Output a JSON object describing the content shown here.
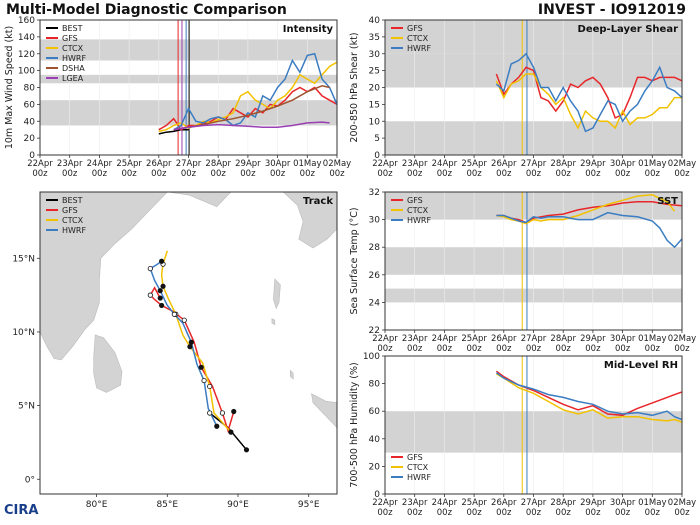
{
  "header": {
    "title": "Multi-Model Diagnostic Comparison",
    "storm": "INVEST - IO912019",
    "logo": "CIRA"
  },
  "colors": {
    "BEST": "#000000",
    "GFS": "#e8262a",
    "CTCX": "#f2c100",
    "HWRF": "#3b7dc2",
    "DSHA": "#a0522d",
    "LGEA": "#9b3fb5",
    "band": "#d3d3d3",
    "land": "#d3d3d3",
    "sea": "#ffffff"
  },
  "time_axis": {
    "labels": [
      "22Apr",
      "23Apr",
      "24Apr",
      "25Apr",
      "26Apr",
      "27Apr",
      "28Apr",
      "29Apr",
      "30Apr",
      "01May",
      "02May"
    ],
    "sublabel": "00z",
    "vlines": [
      {
        "x": 4.65,
        "color": "#e8262a"
      },
      {
        "x": 4.78,
        "color": "#9b3fb5"
      },
      {
        "x": 4.92,
        "color": "#3b7dc2"
      },
      {
        "x": 5.02,
        "color": "#000000"
      }
    ],
    "vlines_right": [
      {
        "x": 4.62,
        "color": "#f2c100"
      },
      {
        "x": 4.78,
        "color": "#3b7dc2"
      }
    ]
  },
  "chart_data": [
    {
      "id": "intensity",
      "type": "line",
      "title": "Intensity",
      "ylabel": "10m Max Wind Speed (kt)",
      "ylim": [
        0,
        160
      ],
      "yticks": [
        0,
        20,
        40,
        60,
        80,
        100,
        120,
        140,
        160
      ],
      "xlim": [
        0,
        10
      ],
      "bands": [
        [
          35,
          65
        ],
        [
          85,
          95
        ],
        [
          112,
          137
        ]
      ],
      "legend": [
        "BEST",
        "GFS",
        "CTCX",
        "HWRF",
        "DSHA",
        "LGEA"
      ],
      "series": [
        {
          "name": "BEST",
          "x": [
            4.0,
            4.25,
            4.5,
            4.75,
            5.0
          ],
          "y": [
            25,
            27,
            28,
            30,
            30
          ]
        },
        {
          "name": "GFS",
          "x": [
            4.0,
            4.25,
            4.5,
            4.75,
            5.0,
            5.25,
            5.5,
            5.75,
            6.0,
            6.25,
            6.5,
            6.75,
            7.0,
            7.25,
            7.5,
            7.75,
            8.0,
            8.25,
            8.5,
            8.75,
            9.0,
            9.25,
            9.5,
            9.75,
            10.0
          ],
          "y": [
            30,
            35,
            43,
            30,
            35,
            35,
            37,
            40,
            45,
            42,
            55,
            50,
            45,
            55,
            50,
            60,
            58,
            65,
            75,
            80,
            75,
            80,
            70,
            65,
            60
          ]
        },
        {
          "name": "CTCX",
          "x": [
            4.0,
            4.25,
            4.5,
            4.75,
            5.0,
            5.25,
            5.5,
            5.75,
            6.0,
            6.25,
            6.5,
            6.75,
            7.0,
            7.25,
            7.5,
            7.75,
            8.0,
            8.25,
            8.5,
            8.75,
            9.0,
            9.25,
            9.5,
            9.75,
            10.0
          ],
          "y": [
            28,
            30,
            35,
            38,
            32,
            35,
            40,
            38,
            42,
            45,
            50,
            70,
            75,
            65,
            60,
            55,
            65,
            70,
            80,
            95,
            90,
            85,
            95,
            105,
            110
          ]
        },
        {
          "name": "HWRF",
          "x": [
            4.5,
            4.75,
            5.0,
            5.25,
            5.5,
            5.75,
            6.0,
            6.25,
            6.5,
            6.75,
            7.0,
            7.25,
            7.5,
            7.75,
            8.0,
            8.25,
            8.5,
            8.75,
            9.0,
            9.25,
            9.5,
            9.75,
            10.0
          ],
          "y": [
            30,
            35,
            55,
            40,
            38,
            43,
            45,
            42,
            35,
            38,
            50,
            45,
            70,
            65,
            80,
            90,
            112,
            98,
            118,
            120,
            90,
            80,
            60
          ]
        },
        {
          "name": "DSHA",
          "x": [
            4.5,
            5.0,
            5.5,
            6.0,
            6.5,
            7.0,
            7.5,
            8.0,
            8.5,
            9.0,
            9.5,
            9.75
          ],
          "y": [
            30,
            33,
            36,
            40,
            43,
            47,
            52,
            58,
            65,
            75,
            82,
            80
          ]
        },
        {
          "name": "LGEA",
          "x": [
            4.5,
            5.0,
            5.5,
            6.0,
            6.5,
            7.0,
            7.5,
            8.0,
            8.5,
            9.0,
            9.5,
            9.75
          ],
          "y": [
            30,
            33,
            35,
            36,
            35,
            34,
            33,
            33,
            35,
            38,
            39,
            38
          ]
        }
      ]
    },
    {
      "id": "shear",
      "type": "line",
      "title": "Deep-Layer Shear",
      "ylabel": "200-850 hPa Shear (kt)",
      "ylim": [
        0,
        40
      ],
      "yticks": [
        0,
        5,
        10,
        15,
        20,
        25,
        30,
        35,
        40
      ],
      "xlim": [
        0,
        10
      ],
      "bands": [
        [
          0,
          10
        ],
        [
          20,
          30
        ],
        [
          30,
          40
        ]
      ],
      "legend": [
        "GFS",
        "CTCX",
        "HWRF"
      ],
      "series": [
        {
          "name": "GFS",
          "x": [
            3.75,
            4.0,
            4.25,
            4.5,
            4.75,
            5.0,
            5.25,
            5.5,
            5.75,
            6.0,
            6.25,
            6.5,
            6.75,
            7.0,
            7.25,
            7.5,
            7.75,
            8.0,
            8.25,
            8.5,
            8.75,
            9.0,
            9.25,
            9.5,
            9.75,
            10.0
          ],
          "y": [
            24,
            18,
            21,
            23,
            26,
            25,
            17,
            16,
            13,
            16,
            21,
            20,
            22,
            23,
            21,
            17,
            11,
            12,
            17,
            23,
            23,
            22,
            23,
            23,
            23,
            22
          ]
        },
        {
          "name": "CTCX",
          "x": [
            3.75,
            4.0,
            4.25,
            4.5,
            4.75,
            5.0,
            5.25,
            5.5,
            5.75,
            6.0,
            6.25,
            6.5,
            6.75,
            7.0,
            7.25,
            7.5,
            7.75,
            8.0,
            8.25,
            8.5,
            8.75,
            9.0,
            9.25,
            9.5,
            9.75,
            10.0
          ],
          "y": [
            22,
            17,
            21,
            22,
            24,
            24,
            20,
            18,
            15,
            17,
            12,
            8,
            13,
            11,
            10,
            10,
            8,
            13,
            9,
            11,
            11,
            12,
            14,
            14,
            17,
            17
          ]
        },
        {
          "name": "HWRF",
          "x": [
            3.75,
            4.0,
            4.25,
            4.5,
            4.75,
            5.0,
            5.25,
            5.5,
            5.75,
            6.0,
            6.25,
            6.5,
            6.75,
            7.0,
            7.25,
            7.5,
            7.75,
            8.0,
            8.25,
            8.5,
            8.75,
            9.0,
            9.25,
            9.5,
            9.75,
            10.0
          ],
          "y": [
            21,
            19,
            27,
            28,
            30,
            26,
            20,
            20,
            16,
            20,
            16,
            13,
            7,
            8,
            12,
            16,
            15,
            10,
            13,
            15,
            19,
            22,
            26,
            20,
            19,
            17
          ]
        }
      ]
    },
    {
      "id": "sst",
      "type": "line",
      "title": "SST",
      "ylabel": "Sea Surface Temp (°C)",
      "ylim": [
        22,
        32
      ],
      "yticks": [
        22,
        24,
        26,
        28,
        30,
        32
      ],
      "xlim": [
        0,
        10
      ],
      "bands": [
        [
          24,
          25
        ],
        [
          26,
          28
        ],
        [
          30,
          32
        ]
      ],
      "legend": [
        "GFS",
        "CTCX",
        "HWRF"
      ],
      "series": [
        {
          "name": "GFS",
          "x": [
            3.75,
            4.0,
            4.25,
            4.5,
            4.75,
            5.0,
            5.25,
            5.5,
            6.0,
            6.5,
            7.0,
            7.5,
            8.0,
            8.5,
            9.0,
            9.5,
            10.0
          ],
          "y": [
            30.3,
            30.3,
            30.1,
            30.0,
            29.8,
            30.1,
            30.2,
            30.3,
            30.4,
            30.7,
            30.9,
            31.0,
            31.2,
            31.3,
            31.3,
            31.1,
            31.0
          ]
        },
        {
          "name": "CTCX",
          "x": [
            3.75,
            4.0,
            4.25,
            4.5,
            4.75,
            5.0,
            5.25,
            5.5,
            6.0,
            6.5,
            7.0,
            7.5,
            8.0,
            8.5,
            9.0,
            9.5,
            9.75
          ],
          "y": [
            30.3,
            30.2,
            30.0,
            29.9,
            29.7,
            30.0,
            29.9,
            30.0,
            30.0,
            30.3,
            30.7,
            31.1,
            31.4,
            31.7,
            31.8,
            31.3,
            30.6
          ]
        },
        {
          "name": "HWRF",
          "x": [
            3.75,
            4.0,
            4.25,
            4.5,
            4.75,
            5.0,
            5.25,
            5.5,
            6.0,
            6.5,
            7.0,
            7.5,
            8.0,
            8.5,
            9.0,
            9.25,
            9.5,
            9.75,
            10.0
          ],
          "y": [
            30.3,
            30.3,
            30.1,
            29.9,
            29.8,
            30.2,
            30.1,
            30.2,
            30.2,
            30.0,
            30.0,
            30.5,
            30.3,
            30.2,
            29.9,
            29.4,
            28.5,
            28.0,
            28.6
          ]
        }
      ]
    },
    {
      "id": "rh",
      "type": "line",
      "title": "Mid-Level RH",
      "ylabel": "700-500 hPa Humidity (%)",
      "ylim": [
        0,
        100
      ],
      "yticks": [
        0,
        20,
        40,
        60,
        80,
        100
      ],
      "xlim": [
        0,
        10
      ],
      "bands": [
        [
          30,
          60
        ],
        [
          100,
          100
        ]
      ],
      "legend": [
        "GFS",
        "CTCX",
        "HWRF"
      ],
      "series": [
        {
          "name": "GFS",
          "x": [
            3.75,
            4.0,
            4.5,
            5.0,
            5.5,
            6.0,
            6.5,
            7.0,
            7.5,
            8.0,
            8.5,
            9.0,
            9.5,
            9.75,
            10.0
          ],
          "y": [
            89,
            85,
            79,
            75,
            70,
            65,
            61,
            64,
            58,
            57,
            62,
            66,
            70,
            72,
            74
          ]
        },
        {
          "name": "CTCX",
          "x": [
            3.75,
            4.0,
            4.5,
            5.0,
            5.5,
            6.0,
            6.5,
            7.0,
            7.5,
            8.0,
            8.5,
            9.0,
            9.5,
            9.75,
            10.0
          ],
          "y": [
            87,
            84,
            77,
            73,
            67,
            61,
            58,
            61,
            55,
            56,
            56,
            54,
            53,
            54,
            52
          ]
        },
        {
          "name": "HWRF",
          "x": [
            3.75,
            4.0,
            4.5,
            5.0,
            5.5,
            6.0,
            6.5,
            7.0,
            7.5,
            8.0,
            8.5,
            9.0,
            9.5,
            9.75,
            10.0
          ],
          "y": [
            88,
            84,
            79,
            76,
            72,
            70,
            67,
            65,
            60,
            58,
            59,
            57,
            60,
            56,
            54
          ]
        }
      ]
    },
    {
      "id": "track",
      "type": "scatter",
      "title": "Track",
      "xlim": [
        76,
        97
      ],
      "ylim": [
        -1,
        19.5
      ],
      "xticks": [
        80,
        85,
        90,
        95
      ],
      "xticklabels": [
        "80°E",
        "85°E",
        "90°E",
        "95°E"
      ],
      "yticks": [
        0,
        5,
        10,
        15
      ],
      "yticklabels": [
        "0°",
        "5°N",
        "10°N",
        "15°N"
      ],
      "legend": [
        "BEST",
        "GFS",
        "CTCX",
        "HWRF"
      ],
      "series": [
        {
          "name": "BEST",
          "lon": [
            90.6,
            89.3,
            88.0
          ],
          "lat": [
            2.0,
            3.5,
            4.5
          ]
        },
        {
          "name": "GFS",
          "lon": [
            89.7,
            89.3,
            88.9,
            88.2,
            87.4,
            86.9,
            86.2,
            85.4,
            84.6,
            84.1,
            83.8,
            84.1,
            84.5
          ],
          "lat": [
            4.6,
            3.3,
            4.5,
            6.3,
            7.6,
            9.3,
            10.8,
            11.4,
            11.8,
            12.2,
            12.5,
            13.0,
            12.3
          ]
        },
        {
          "name": "CTCX",
          "lon": [
            89.5,
            88.3,
            88.0,
            87.5,
            86.6,
            86.1,
            85.6,
            85.1,
            84.7,
            84.6,
            84.7,
            85.0
          ],
          "lat": [
            3.2,
            4.5,
            6.3,
            7.9,
            9.0,
            9.8,
            11.2,
            12.2,
            13.1,
            13.9,
            14.6,
            15.5
          ]
        },
        {
          "name": "HWRF",
          "lon": [
            88.5,
            87.9,
            87.6,
            87.1,
            86.7,
            86.1,
            85.5,
            85.0,
            84.5,
            84.1,
            83.8,
            84.3,
            84.6
          ],
          "lat": [
            3.6,
            4.8,
            6.7,
            7.8,
            9.3,
            10.6,
            11.2,
            11.8,
            12.8,
            13.5,
            14.3,
            14.6,
            14.8
          ]
        }
      ]
    }
  ]
}
